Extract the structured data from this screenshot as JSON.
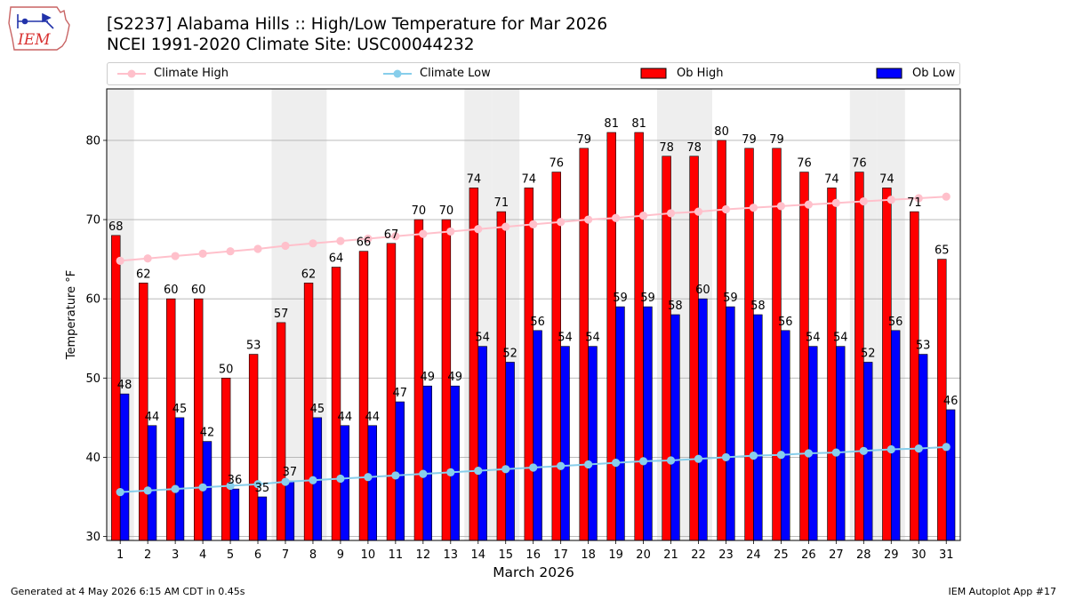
{
  "header": {
    "logo_text": "IEM",
    "title_line1": "[S2237] Alabama Hills :: High/Low Temperature for Mar 2026",
    "title_line2": "NCEI 1991-2020 Climate Site: USC00044232"
  },
  "footer": {
    "left": "Generated at 4 May 2026 6:15 AM CDT in 0.45s",
    "right": "IEM Autoplot App #17"
  },
  "colors": {
    "ob_high": "#ff0000",
    "ob_low": "#0000ff",
    "climate_high": "#ffc0cb",
    "climate_low": "#87ceeb",
    "weekend_shade": "#eeeeee",
    "grid": "#b0b0b0"
  },
  "chart_data": {
    "type": "bar",
    "xlabel": "March 2026",
    "ylabel": "Temperature °F",
    "ylim": [
      29.5,
      86.5
    ],
    "yticks": [
      30,
      40,
      50,
      60,
      70,
      80
    ],
    "grid": "horizontal",
    "legend_position": "top",
    "categories": [
      "1",
      "2",
      "3",
      "4",
      "5",
      "6",
      "7",
      "8",
      "9",
      "10",
      "11",
      "12",
      "13",
      "14",
      "15",
      "16",
      "17",
      "18",
      "19",
      "20",
      "21",
      "22",
      "23",
      "24",
      "25",
      "26",
      "27",
      "28",
      "29",
      "30",
      "31"
    ],
    "shaded_days": [
      1,
      7,
      8,
      14,
      15,
      21,
      22,
      28,
      29
    ],
    "series": [
      {
        "name": "Climate High",
        "kind": "line",
        "color": "#ffc0cb",
        "values": [
          64.8,
          65.1,
          65.4,
          65.7,
          66.0,
          66.3,
          66.7,
          67.0,
          67.3,
          67.6,
          67.9,
          68.2,
          68.5,
          68.8,
          69.1,
          69.4,
          69.7,
          70.0,
          70.2,
          70.5,
          70.8,
          71.0,
          71.3,
          71.5,
          71.7,
          71.9,
          72.1,
          72.3,
          72.5,
          72.7,
          72.9
        ]
      },
      {
        "name": "Climate Low",
        "kind": "line",
        "color": "#87ceeb",
        "values": [
          35.6,
          35.8,
          36.0,
          36.2,
          36.4,
          36.6,
          36.9,
          37.1,
          37.3,
          37.5,
          37.7,
          37.9,
          38.1,
          38.3,
          38.5,
          38.7,
          38.9,
          39.1,
          39.3,
          39.5,
          39.6,
          39.8,
          40.0,
          40.2,
          40.3,
          40.5,
          40.6,
          40.8,
          41.0,
          41.1,
          41.3
        ]
      },
      {
        "name": "Ob High",
        "kind": "bar",
        "color": "#ff0000",
        "values": [
          68,
          62,
          60,
          60,
          50,
          53,
          57,
          62,
          64,
          66,
          67,
          70,
          70,
          74,
          71,
          74,
          76,
          79,
          81,
          81,
          78,
          78,
          80,
          79,
          79,
          76,
          74,
          76,
          74,
          71,
          65
        ]
      },
      {
        "name": "Ob Low",
        "kind": "bar",
        "color": "#0000ff",
        "values": [
          48,
          44,
          45,
          42,
          36,
          35,
          37,
          45,
          44,
          44,
          47,
          49,
          49,
          54,
          52,
          56,
          54,
          54,
          59,
          59,
          58,
          60,
          59,
          58,
          56,
          54,
          54,
          52,
          56,
          53,
          46
        ]
      }
    ]
  }
}
